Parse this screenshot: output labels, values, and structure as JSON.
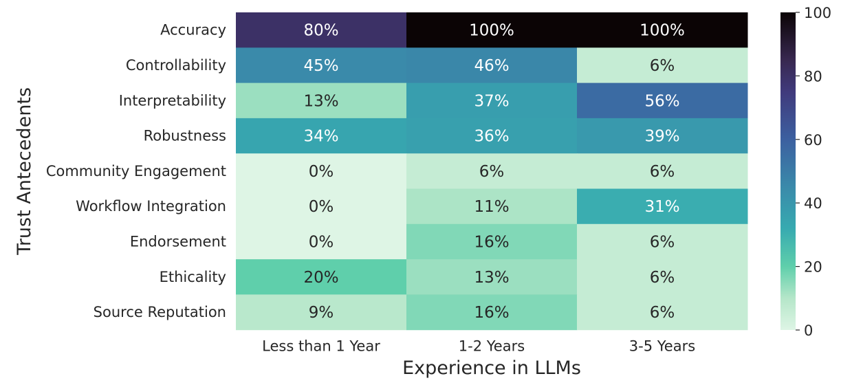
{
  "chart_data": {
    "type": "heatmap",
    "title": "",
    "xlabel": "Experience in LLMs",
    "ylabel": "Trust Antecedents",
    "columns": [
      "Less than 1 Year",
      "1-2 Years",
      "3-5 Years"
    ],
    "rows": [
      "Accuracy",
      "Controllability",
      "Interpretability",
      "Robustness",
      "Community Engagement",
      "Workflow Integration",
      "Endorsement",
      "Ethicality",
      "Source Reputation"
    ],
    "values": [
      [
        80,
        100,
        100
      ],
      [
        45,
        46,
        6
      ],
      [
        13,
        37,
        56
      ],
      [
        34,
        36,
        39
      ],
      [
        0,
        6,
        6
      ],
      [
        0,
        11,
        31
      ],
      [
        0,
        16,
        6
      ],
      [
        20,
        13,
        6
      ],
      [
        9,
        16,
        6
      ]
    ],
    "value_suffix": "%",
    "colorbar": {
      "min": 0,
      "max": 100,
      "ticks": [
        0,
        20,
        40,
        60,
        80,
        100
      ],
      "colormap": "mako_r"
    }
  }
}
